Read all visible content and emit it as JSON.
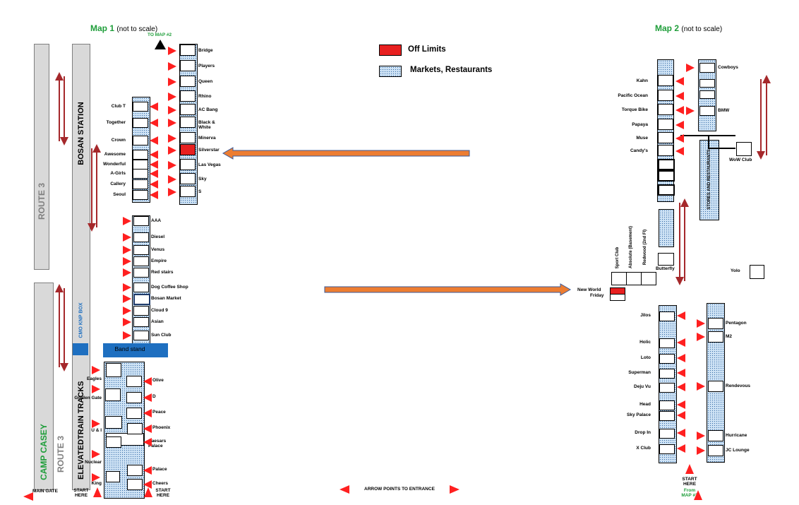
{
  "colors": {
    "arrow_red": "#ff2020",
    "road_grey": "#d9d9d9",
    "pattern_blue": "#cfe3f5",
    "route_text": "#7f7f7f",
    "accent_green": "#1f9e3a",
    "blue_band": "#1e6fc0",
    "big_arrow": "#ed7d31",
    "dark_red": "#a5282b"
  },
  "map1": {
    "title": "Map 1",
    "note": "(not to scale)",
    "to_map2": "TO MAP #2"
  },
  "map2": {
    "title": "Map 2",
    "note": "(not to scale)"
  },
  "legend": {
    "off_limits": "Off Limits",
    "markets": "Markets, Restaurants"
  },
  "roads": {
    "bosan_station": "BOSAN STATION",
    "route3_top": "ROUTE 3",
    "route3_bottom": "ROUTE 3",
    "camp_casey": "CAMP CASEY",
    "elevated_tracks": "ELEVATEDTRAIN TRACKS",
    "cmo_knp_box": "CMO KNP BOX",
    "band_stand": "Band stand"
  },
  "map1_right_column": [
    "Bridge",
    "Players",
    "Queen",
    "Rhino",
    "AC Bang",
    "Black & White",
    "Minerva",
    "Silverstar",
    "Las Vegas",
    "Sky",
    "S"
  ],
  "map1_left_column": [
    "Club T",
    "Together",
    "Crown",
    "Awesome",
    "Wonderful",
    "A-Girls",
    "Callery",
    "Seoul"
  ],
  "map1_middle_column": [
    "AAA",
    "Diesel",
    "Venus",
    "Empire",
    "Red stairs",
    "Dog Coffee Shop",
    "Bosan Market",
    "Cloud 9",
    "Asian",
    "Sun Club"
  ],
  "map1_bottom_left": [
    "Eagles",
    "Golden Gate",
    "U & I",
    "Nuclear",
    "King"
  ],
  "map1_bottom_right": [
    "Olive",
    "D",
    "Peace",
    "Phoenix",
    "Caesars Palace",
    "Palace",
    "Cheers"
  ],
  "map1_footer": {
    "main_gate": "MAIN GATE",
    "start_here_1": "START HERE",
    "start_here_2": "START HERE",
    "arrow_note": "ARROW POINTS TO ENTRANCE"
  },
  "map2_upper_left": [
    "Kahn",
    "Pacific Ocean",
    "Torque Bike",
    "Papaya",
    "Muse",
    "Candy's"
  ],
  "map2_upper_right": [
    "Cowboys",
    "BMW"
  ],
  "map2_wow": "WoW Club",
  "map2_stores_strip": "STORES AND RESTAURANTS",
  "map2_middle": {
    "sport_club": "Sport Club",
    "absolute": "Absolute (Basement)",
    "redwood": "Redwood (2nd Fl)",
    "butterfly": "Butterfly",
    "yolo": "Yolo",
    "new_world": "New World",
    "friday": "Friday"
  },
  "map2_lower_left": [
    "Jilos",
    "Holic",
    "Loto",
    "Superman",
    "Deju Vu",
    "Head",
    "Sky Palace",
    "Drop In",
    "X Club"
  ],
  "map2_lower_right": [
    "Pentagon",
    "M2",
    "Rendevous",
    "Hurricane",
    "JC Lounge"
  ],
  "map2_footer": {
    "start_here": "START HERE",
    "from_map": "From MAP #1"
  }
}
